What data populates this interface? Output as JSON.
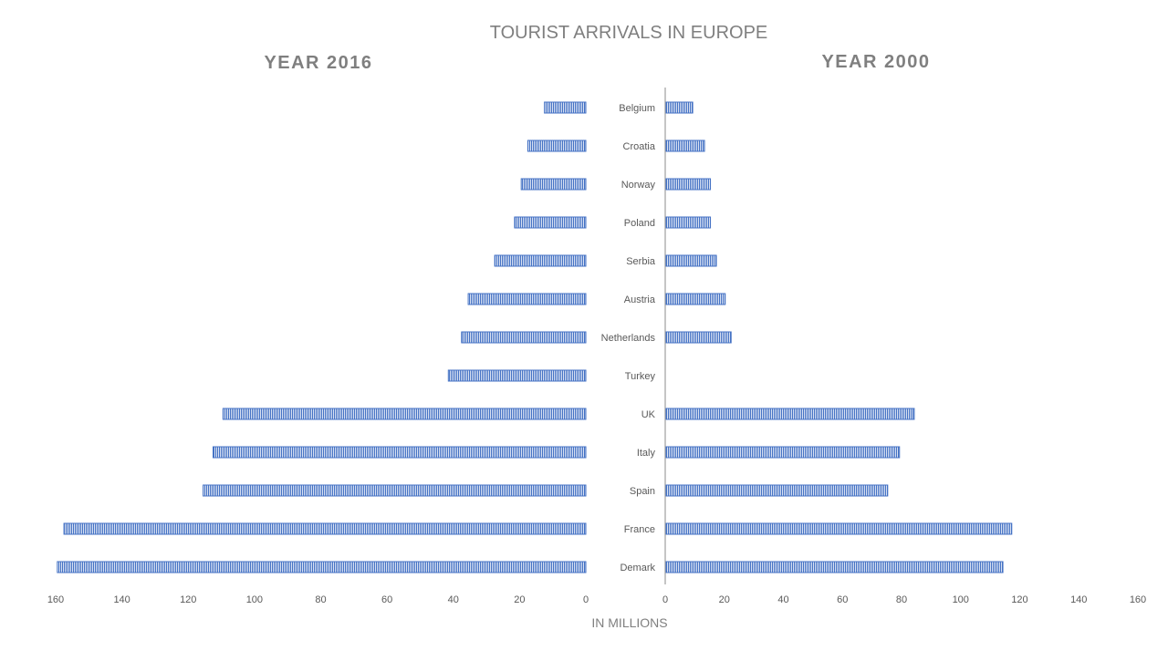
{
  "chart_data": {
    "type": "bar",
    "orientation": "horizontal",
    "layout": "butterfly",
    "title": "TOURIST ARRIVALS IN EUROPE",
    "xlabel": "IN MILLIONS",
    "categories": [
      "Belgium",
      "Croatia",
      "Norway",
      "Poland",
      "Serbia",
      "Austria",
      "Netherlands",
      "Turkey",
      "UK",
      "Italy",
      "Spain",
      "France",
      "Demark"
    ],
    "xlim": [
      0,
      160
    ],
    "ticks": [
      0,
      20,
      40,
      60,
      80,
      100,
      120,
      140,
      160
    ],
    "series": [
      {
        "name": "YEAR 2016",
        "side": "left",
        "values": [
          12.5,
          17.5,
          19.5,
          21.5,
          27.5,
          35.5,
          37.5,
          41.5,
          109.5,
          112.5,
          115.5,
          157.5,
          159.5
        ]
      },
      {
        "name": "YEAR 2000",
        "side": "right",
        "values": [
          9,
          13,
          15,
          15,
          17,
          20,
          22,
          0,
          84,
          79,
          75,
          117,
          114
        ]
      }
    ],
    "bar_color": "#4472C4",
    "bar_pattern": "vertical-stripes",
    "grid": false,
    "legend": "none"
  }
}
